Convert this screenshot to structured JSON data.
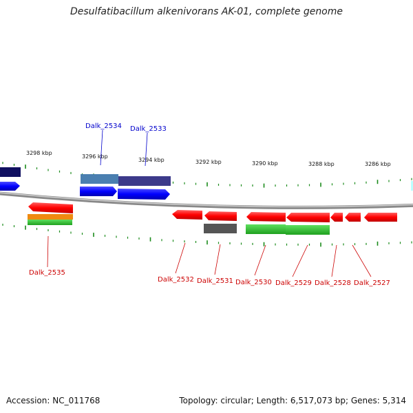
{
  "title": "Desulfatibacillum alkenivorans AK-01, complete genome",
  "footer": {
    "accession": "Accession: NC_011768",
    "summary": "Topology: circular; Length: 6,517,073 bp; Genes: 5,314"
  },
  "ticks": [
    "3298 kbp",
    "3296 kbp",
    "3294 kbp",
    "3292 kbp",
    "3290 kbp",
    "3288 kbp",
    "3286 kbp"
  ],
  "gene_labels": {
    "top": [
      "Dalk_2534",
      "Dalk_2533"
    ],
    "bottom": [
      "Dalk_2535",
      "Dalk_2532",
      "Dalk_2531",
      "Dalk_2530",
      "Dalk_2529",
      "Dalk_2528",
      "Dalk_2527"
    ]
  },
  "colors": {
    "forward_cds": "#0000ff",
    "reverse_cds": "#ff0000",
    "backbone": "#888888",
    "tick": "#1a8a1a",
    "label_forward": "#0000cc",
    "label_reverse": "#cc0000"
  }
}
